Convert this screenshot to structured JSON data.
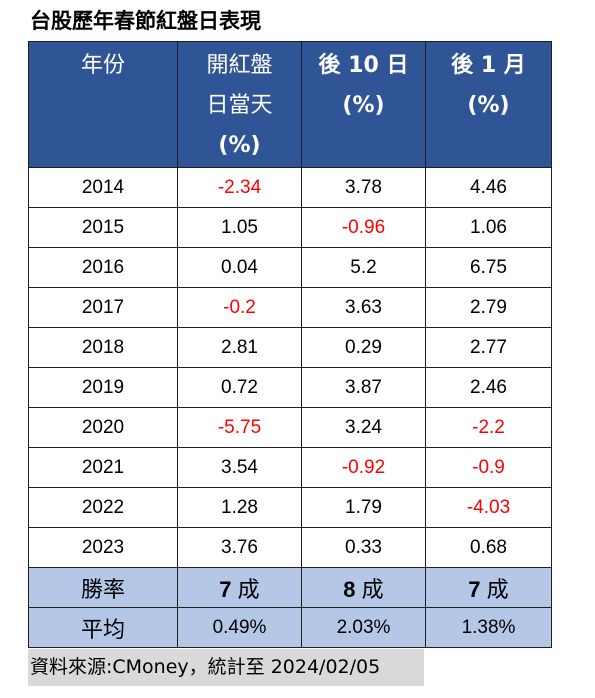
{
  "title": "台股歷年春節紅盤日表現",
  "table": {
    "headers": [
      {
        "lines": [
          "年份"
        ]
      },
      {
        "lines": [
          "開紅盤",
          "日當天",
          "(%)"
        ]
      },
      {
        "lines": [
          "後 10 日",
          "(%)"
        ]
      },
      {
        "lines": [
          "後 1 月",
          "(%)"
        ]
      }
    ],
    "rows": [
      {
        "year": "2014",
        "day": "-2.34",
        "d10": "3.78",
        "m1": "4.46"
      },
      {
        "year": "2015",
        "day": "1.05",
        "d10": "-0.96",
        "m1": "1.06"
      },
      {
        "year": "2016",
        "day": "0.04",
        "d10": "5.2",
        "m1": "6.75"
      },
      {
        "year": "2017",
        "day": "-0.2",
        "d10": "3.63",
        "m1": "2.79"
      },
      {
        "year": "2018",
        "day": "2.81",
        "d10": "0.29",
        "m1": "2.77"
      },
      {
        "year": "2019",
        "day": "0.72",
        "d10": "3.87",
        "m1": "2.46"
      },
      {
        "year": "2020",
        "day": "-5.75",
        "d10": "3.24",
        "m1": "-2.2"
      },
      {
        "year": "2021",
        "day": "3.54",
        "d10": "-0.92",
        "m1": "-0.9"
      },
      {
        "year": "2022",
        "day": "1.28",
        "d10": "1.79",
        "m1": "-4.03"
      },
      {
        "year": "2023",
        "day": "3.76",
        "d10": "0.33",
        "m1": "0.68"
      }
    ],
    "win_rate": {
      "label": "勝率",
      "day_num": "7",
      "d10_num": "8",
      "m1_num": "7",
      "unit": "成"
    },
    "average": {
      "label": "平均",
      "day": "0.49%",
      "d10": "2.03%",
      "m1": "1.38%"
    }
  },
  "source": "資料來源:CMoney，統計至 2024/02/05",
  "colors": {
    "header_bg": "#2f5597",
    "summary_bg": "#b4c7e7",
    "negative": "#ff0000",
    "source_bg": "#d9d9d9"
  }
}
